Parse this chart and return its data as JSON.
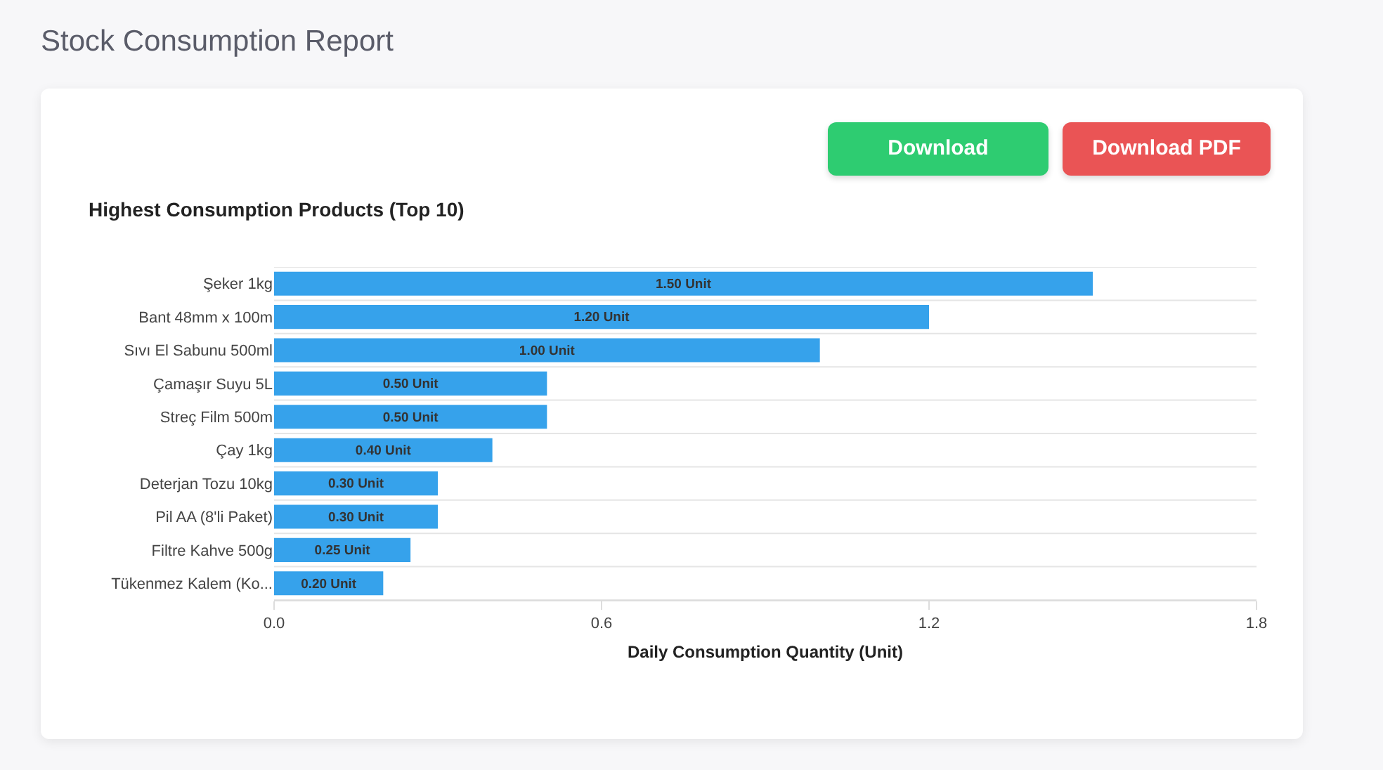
{
  "chart_data": {
    "type": "bar",
    "orientation": "horizontal",
    "title": "Highest Consumption Products (Top 10)",
    "xlabel": "Daily Consumption Quantity (Unit)",
    "annotations": [
      "Stock Consumption Report",
      "Download",
      "Download PDF"
    ],
    "categories": [
      "Şeker 1kg",
      "Bant 48mm x 100m",
      "Sıvı El Sabunu 500ml",
      "Çamaşır Suyu 5L",
      "Streç Film 500m",
      "Çay 1kg",
      "Deterjan Tozu 10kg",
      "Pil AA (8'li Paket)",
      "Filtre Kahve 500g",
      "Tükenmez Kalem (Ko..."
    ],
    "values": [
      1.5,
      1.2,
      1.0,
      0.5,
      0.5,
      0.4,
      0.3,
      0.3,
      0.25,
      0.2
    ],
    "value_labels": [
      "1.50 Unit",
      "1.20 Unit",
      "1.00 Unit",
      "0.50 Unit",
      "0.50 Unit",
      "0.40 Unit",
      "0.30 Unit",
      "0.30 Unit",
      "0.25 Unit",
      "0.20 Unit"
    ],
    "color": "#36a2eb",
    "xlim": [
      0,
      1.8
    ],
    "xticks": [
      {
        "value": 0,
        "label": "0.0"
      },
      0.6,
      1.2,
      1.8
    ],
    "grid": "y"
  }
}
